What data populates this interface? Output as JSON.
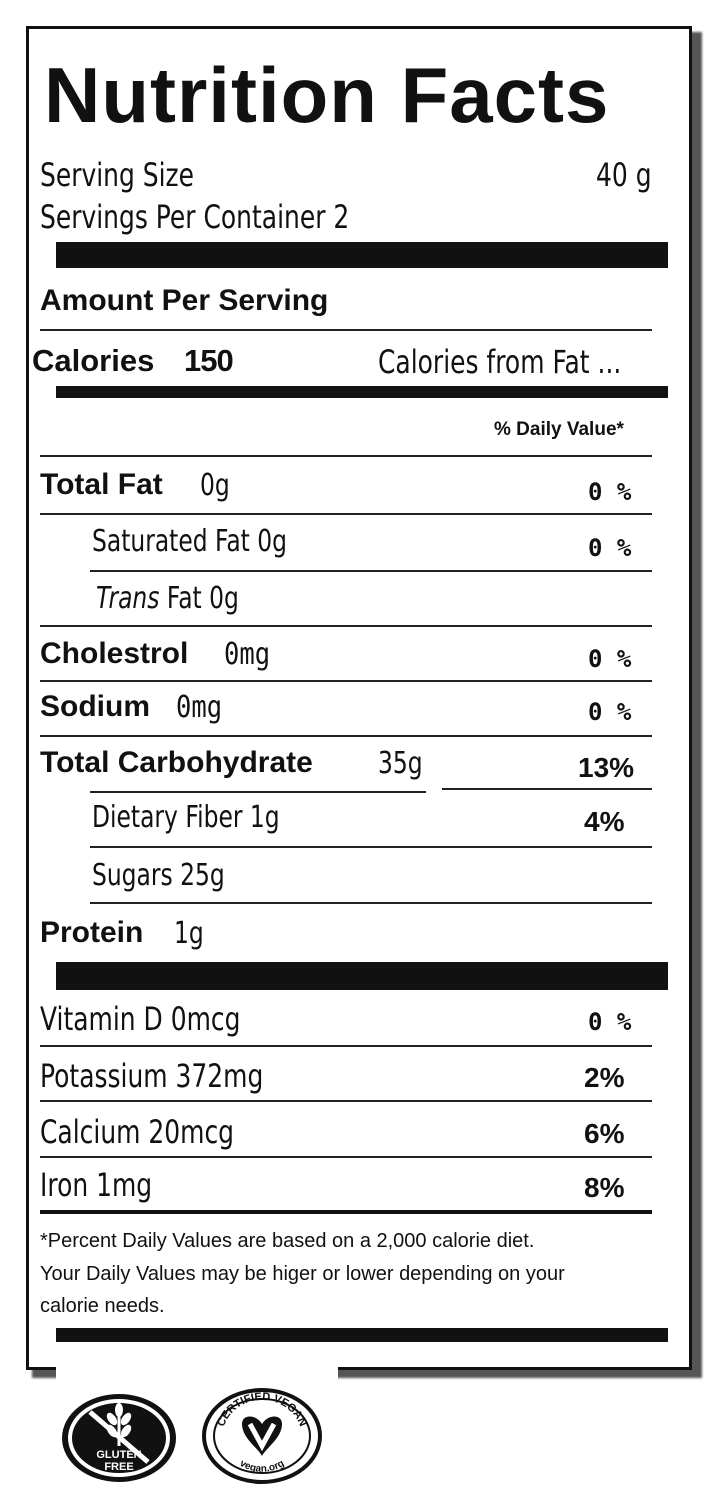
{
  "label": {
    "title": "Nutrition Facts",
    "serving_size_label": "Serving Size",
    "serving_size_value": "40 g",
    "servings_per_container": "Servings Per Container 2",
    "amount_per_serving": "Amount Per Serving",
    "calories_label": "Calories",
    "calories_value": "150",
    "calories_from_fat": "Calories from Fat ...",
    "daily_value_header": "% Daily Value*",
    "nutrients": {
      "total_fat": {
        "name": "Total Fat",
        "amount": "0g",
        "dv": "0 %"
      },
      "saturated_fat": {
        "name": "Saturated Fat 0g",
        "dv": "0 %"
      },
      "trans_fat": {
        "italic": "Trans",
        "name": " Fat 0g"
      },
      "cholesterol": {
        "name": "Cholestrol",
        "amount": "0mg",
        "dv": "0 %"
      },
      "sodium": {
        "name": "Sodium",
        "amount": "0mg",
        "dv": "0 %"
      },
      "total_carbohydrate": {
        "name": "Total Carbohydrate",
        "amount": "35g",
        "dv": "13%"
      },
      "dietary_fiber": {
        "name": "Dietary Fiber 1g",
        "dv": "4%"
      },
      "sugars": {
        "name": "Sugars 25g"
      },
      "protein": {
        "name": "Protein",
        "amount": "1g"
      }
    },
    "vitamins": [
      {
        "name": "Vitamin D 0mcg",
        "dv": "0 %"
      },
      {
        "name": "Potassium 372mg",
        "dv": "2%"
      },
      {
        "name": "Calcium 20mcg",
        "dv": "6%"
      },
      {
        "name": "Iron 1mg",
        "dv": "8%"
      }
    ],
    "footnote_1": "*Percent Daily Values are based on a 2,000 calorie diet.",
    "footnote_2": "Your Daily Values may be higer or lower depending on your",
    "footnote_3": "calorie needs."
  },
  "badges": {
    "gluten_free": {
      "line1": "GLUTEN",
      "line2": "FREE"
    },
    "vegan": {
      "top": "CERTIFIED VEGAN",
      "bottom": "vegan.org"
    }
  },
  "colors": {
    "ink": "#111111",
    "background": "#ffffff"
  }
}
